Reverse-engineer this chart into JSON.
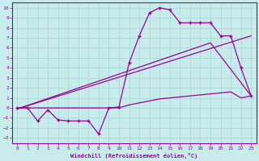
{
  "xlabel": "Windchill (Refroidissement éolien,°C)",
  "background_color": "#c8ecec",
  "grid_color": "#aed8d8",
  "line_color": "#990099",
  "xlim": [
    -0.5,
    23.5
  ],
  "ylim": [
    -3.5,
    10.5
  ],
  "xticks": [
    0,
    1,
    2,
    3,
    4,
    5,
    6,
    7,
    8,
    9,
    10,
    11,
    12,
    13,
    14,
    15,
    16,
    17,
    18,
    19,
    20,
    21,
    22,
    23
  ],
  "yticks": [
    -3,
    -2,
    -1,
    0,
    1,
    2,
    3,
    4,
    5,
    6,
    7,
    8,
    9,
    10
  ],
  "line1_x": [
    0,
    1,
    2,
    3,
    4,
    5,
    6,
    7,
    8,
    9,
    10,
    11,
    12,
    13,
    14,
    15,
    16,
    17,
    18,
    19,
    20,
    21,
    22,
    23
  ],
  "line1_y": [
    0,
    0,
    -1.3,
    -0.2,
    -1.2,
    -1.3,
    -1.3,
    -1.3,
    -2.6,
    0.0,
    0.1,
    4.5,
    7.2,
    9.5,
    10.0,
    9.8,
    8.5,
    8.5,
    8.5,
    8.5,
    7.2,
    7.2,
    4.0,
    1.2
  ],
  "line2_x": [
    0,
    1,
    2,
    3,
    4,
    5,
    6,
    7,
    8,
    9,
    10,
    11,
    12,
    13,
    14,
    15,
    16,
    17,
    18,
    19,
    20,
    21,
    22,
    23
  ],
  "line2_y": [
    0,
    0,
    0,
    0,
    0,
    0,
    0,
    0,
    0,
    0,
    0,
    0.3,
    0.5,
    0.7,
    0.9,
    1.0,
    1.1,
    1.2,
    1.3,
    1.4,
    1.5,
    1.6,
    1.0,
    1.2
  ],
  "line3_x": [
    0,
    23
  ],
  "line3_y": [
    -0.1,
    7.2
  ],
  "line4_x": [
    0,
    19,
    23
  ],
  "line4_y": [
    -0.1,
    6.5,
    1.2
  ]
}
